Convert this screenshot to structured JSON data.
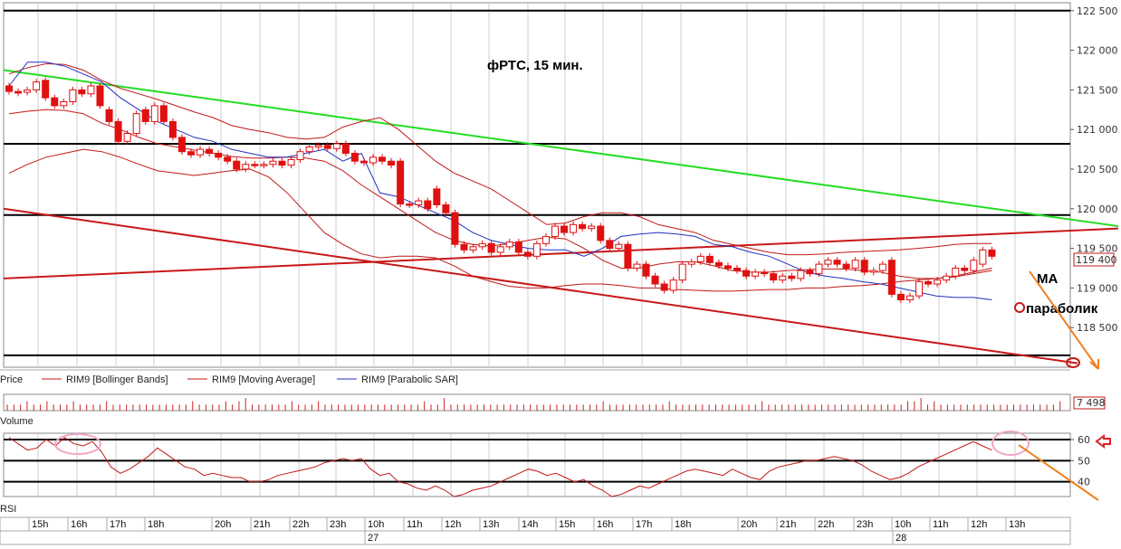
{
  "colors": {
    "candle": "#e01010",
    "bollinger": "#c01818",
    "moving_average": "#c01818",
    "parabolic_sar": "#2030c0",
    "trendline_green": "#22dd22",
    "trendline_red": "#c81818",
    "annotation_arrow": "#f08020",
    "rsi": "#c01818",
    "volume": "#cc2222",
    "ellipse": "#f0a8c8"
  },
  "chart_data": [
    {
      "type": "candlestick",
      "title": "фРТС,  15 мин.",
      "ylim": [
        118000,
        122600
      ],
      "y_ticks": [
        "122 500",
        "122 000",
        "121 500",
        "121 000",
        "120 500",
        "120 000",
        "119 500",
        "119 000",
        "118 500"
      ],
      "y_tick_values": [
        122500,
        122000,
        121500,
        121000,
        120500,
        120000,
        119500,
        119000,
        118500
      ],
      "last_price": "119 400",
      "legend": [
        {
          "swatch": "red",
          "label": "Price"
        },
        {
          "swatch": "red",
          "label": "RIM9 [Bollinger Bands]"
        },
        {
          "swatch": "red",
          "label": "RIM9 [Moving Average]"
        },
        {
          "swatch": "blue",
          "label": "RIM9 [Parabolic SAR]"
        }
      ],
      "horizontal_levels": [
        122500,
        120820,
        119920,
        118150
      ],
      "candles": [
        {
          "o": 121550,
          "c": 121480
        },
        {
          "o": 121480,
          "c": 121460
        },
        {
          "o": 121470,
          "c": 121500
        },
        {
          "o": 121500,
          "c": 121600
        },
        {
          "o": 121620,
          "c": 121400
        },
        {
          "o": 121400,
          "c": 121300
        },
        {
          "o": 121300,
          "c": 121350
        },
        {
          "o": 121350,
          "c": 121500
        },
        {
          "o": 121500,
          "c": 121450
        },
        {
          "o": 121450,
          "c": 121550
        },
        {
          "o": 121550,
          "c": 121300
        },
        {
          "o": 121250,
          "c": 121100
        },
        {
          "o": 121100,
          "c": 120850
        },
        {
          "o": 120850,
          "c": 120950
        },
        {
          "o": 120950,
          "c": 121200
        },
        {
          "o": 121250,
          "c": 121100
        },
        {
          "o": 121100,
          "c": 121300
        },
        {
          "o": 121300,
          "c": 121100
        },
        {
          "o": 121100,
          "c": 120900
        },
        {
          "o": 120900,
          "c": 120720
        },
        {
          "o": 120720,
          "c": 120680
        },
        {
          "o": 120680,
          "c": 120750
        },
        {
          "o": 120750,
          "c": 120700
        },
        {
          "o": 120700,
          "c": 120650
        },
        {
          "o": 120650,
          "c": 120600
        },
        {
          "o": 120600,
          "c": 120500
        },
        {
          "o": 120500,
          "c": 120560
        },
        {
          "o": 120560,
          "c": 120550
        },
        {
          "o": 120550,
          "c": 120560
        },
        {
          "o": 120560,
          "c": 120600
        },
        {
          "o": 120600,
          "c": 120550
        },
        {
          "o": 120550,
          "c": 120620
        },
        {
          "o": 120620,
          "c": 120720
        },
        {
          "o": 120720,
          "c": 120780
        },
        {
          "o": 120780,
          "c": 120800
        },
        {
          "o": 120800,
          "c": 120760
        },
        {
          "o": 120760,
          "c": 120820
        },
        {
          "o": 120820,
          "c": 120700
        },
        {
          "o": 120700,
          "c": 120600
        },
        {
          "o": 120600,
          "c": 120580
        },
        {
          "o": 120580,
          "c": 120650
        },
        {
          "o": 120650,
          "c": 120600
        },
        {
          "o": 120600,
          "c": 120550
        },
        {
          "o": 120600,
          "c": 120060
        },
        {
          "o": 120060,
          "c": 120050
        },
        {
          "o": 120050,
          "c": 120100
        },
        {
          "o": 120100,
          "c": 120000
        },
        {
          "o": 120250,
          "c": 120050
        },
        {
          "o": 120050,
          "c": 119950
        },
        {
          "o": 119950,
          "c": 119550
        },
        {
          "o": 119550,
          "c": 119480
        },
        {
          "o": 119480,
          "c": 119520
        },
        {
          "o": 119520,
          "c": 119560
        },
        {
          "o": 119560,
          "c": 119450
        },
        {
          "o": 119450,
          "c": 119520
        },
        {
          "o": 119520,
          "c": 119580
        },
        {
          "o": 119580,
          "c": 119450
        },
        {
          "o": 119450,
          "c": 119400
        },
        {
          "o": 119400,
          "c": 119560
        },
        {
          "o": 119560,
          "c": 119650
        },
        {
          "o": 119650,
          "c": 119780
        },
        {
          "o": 119780,
          "c": 119700
        },
        {
          "o": 119700,
          "c": 119800
        },
        {
          "o": 119800,
          "c": 119750
        },
        {
          "o": 119750,
          "c": 119780
        },
        {
          "o": 119780,
          "c": 119600
        },
        {
          "o": 119600,
          "c": 119500
        },
        {
          "o": 119500,
          "c": 119550
        },
        {
          "o": 119550,
          "c": 119250
        },
        {
          "o": 119250,
          "c": 119300
        },
        {
          "o": 119300,
          "c": 119150
        },
        {
          "o": 119150,
          "c": 119050
        },
        {
          "o": 119050,
          "c": 118970
        },
        {
          "o": 118970,
          "c": 119100
        },
        {
          "o": 119100,
          "c": 119300
        },
        {
          "o": 119300,
          "c": 119330
        },
        {
          "o": 119330,
          "c": 119400
        },
        {
          "o": 119400,
          "c": 119320
        },
        {
          "o": 119320,
          "c": 119280
        },
        {
          "o": 119280,
          "c": 119250
        },
        {
          "o": 119250,
          "c": 119220
        },
        {
          "o": 119220,
          "c": 119150
        },
        {
          "o": 119150,
          "c": 119200
        },
        {
          "o": 119200,
          "c": 119180
        },
        {
          "o": 119180,
          "c": 119100
        },
        {
          "o": 119100,
          "c": 119150
        },
        {
          "o": 119150,
          "c": 119120
        },
        {
          "o": 119120,
          "c": 119220
        },
        {
          "o": 119220,
          "c": 119180
        },
        {
          "o": 119180,
          "c": 119300
        },
        {
          "o": 119300,
          "c": 119350
        },
        {
          "o": 119350,
          "c": 119300
        },
        {
          "o": 119300,
          "c": 119250
        },
        {
          "o": 119250,
          "c": 119350
        },
        {
          "o": 119350,
          "c": 119200
        },
        {
          "o": 119200,
          "c": 119220
        },
        {
          "o": 119220,
          "c": 119300
        },
        {
          "o": 119350,
          "c": 118920
        },
        {
          "o": 118920,
          "c": 118850
        },
        {
          "o": 118850,
          "c": 118900
        },
        {
          "o": 118900,
          "c": 119080
        },
        {
          "o": 119080,
          "c": 119050
        },
        {
          "o": 119050,
          "c": 119100
        },
        {
          "o": 119100,
          "c": 119150
        },
        {
          "o": 119150,
          "c": 119250
        },
        {
          "o": 119250,
          "c": 119220
        },
        {
          "o": 119220,
          "c": 119350
        },
        {
          "o": 119300,
          "c": 119480
        },
        {
          "o": 119480,
          "c": 119400
        }
      ],
      "bollinger_upper": [
        121700,
        121780,
        121830,
        121820,
        121750,
        121620,
        121520,
        121450,
        121380,
        121300,
        121220,
        121150,
        121050,
        121000,
        120960,
        120900,
        120880,
        120900,
        121030,
        121100,
        121150,
        121000,
        120800,
        120600,
        120450,
        120350,
        120250,
        120100,
        119950,
        119800,
        119820,
        119900,
        119950,
        119950,
        119900,
        119800,
        119750,
        119700,
        119600,
        119550,
        119500,
        119450,
        119420,
        119420,
        119430,
        119450,
        119460,
        119470,
        119480,
        119500,
        119520,
        119550,
        119560,
        119560
      ],
      "bollinger_lower": [
        120450,
        120560,
        120650,
        120700,
        120750,
        120720,
        120650,
        120560,
        120480,
        120450,
        120420,
        120450,
        120480,
        120500,
        120400,
        120200,
        119950,
        119700,
        119550,
        119430,
        119380,
        119400,
        119400,
        119380,
        119280,
        119150,
        119080,
        119020,
        119000,
        119000,
        119030,
        119050,
        119050,
        119030,
        119000,
        119000,
        118980,
        118970,
        118960,
        118960,
        118970,
        118980,
        118980,
        119000,
        119000,
        119020,
        119030,
        119050,
        119080,
        119100,
        119120,
        119150,
        119200,
        119250
      ],
      "moving_average": [
        121200,
        121230,
        121250,
        121240,
        121200,
        121080,
        121000,
        120900,
        120820,
        120780,
        120740,
        120700,
        120660,
        120640,
        120640,
        120650,
        120640,
        120600,
        120480,
        120300,
        120150,
        120000,
        119850,
        119700,
        119600,
        119550,
        119530,
        119560,
        119600,
        119640,
        119620,
        119500,
        119350,
        119250,
        119250,
        119300,
        119330,
        119330,
        119280,
        119220,
        119200,
        119200,
        119220,
        119230,
        119240,
        119240,
        119220,
        119200,
        119150,
        119120,
        119120,
        119140,
        119180,
        119220
      ],
      "parabolic_sar": [
        121550,
        121850,
        121850,
        121800,
        121700,
        121600,
        121400,
        121250,
        121100,
        121000,
        120900,
        120850,
        120750,
        120700,
        120650,
        120650,
        120700,
        120750,
        120600,
        120700,
        120200,
        120150,
        120050,
        119950,
        119850,
        119700,
        119600,
        119550,
        119500,
        119480,
        119480,
        119400,
        119500,
        119650,
        119680,
        119700,
        119680,
        119650,
        119550,
        119520,
        119450,
        119400,
        119300,
        119200,
        119150,
        119120,
        119080,
        119050,
        119000,
        118950,
        118900,
        118880,
        118880,
        118850
      ]
    },
    {
      "type": "bar",
      "title": "Volume",
      "last_value": "7 498",
      "values": [
        1,
        1,
        1,
        2,
        1,
        1,
        2,
        1,
        1,
        1,
        2,
        1,
        1,
        1,
        1,
        2,
        1,
        1,
        1,
        1,
        1,
        1,
        1,
        1,
        1,
        1,
        1,
        1,
        2,
        1,
        1,
        1,
        1,
        2,
        1,
        2,
        3,
        1,
        1,
        1,
        1,
        1,
        1,
        2,
        1,
        1,
        1,
        2,
        1,
        1,
        1,
        1,
        1,
        1,
        1,
        1,
        1,
        1,
        1,
        1,
        1,
        1,
        1,
        2,
        1,
        1,
        3,
        1,
        1,
        1,
        1,
        1,
        1,
        1,
        1,
        1,
        1,
        1,
        1,
        1,
        1,
        1,
        1,
        1,
        1,
        1,
        1,
        1,
        1,
        1,
        2,
        1,
        1,
        1,
        1,
        1,
        1,
        1,
        1,
        1,
        2,
        1,
        1,
        1,
        1,
        1,
        1,
        1,
        1,
        1,
        1,
        1,
        1,
        1,
        2,
        1,
        1,
        1,
        1,
        1,
        1,
        1,
        1,
        1,
        1,
        1,
        1,
        1,
        1,
        1,
        1,
        1,
        1,
        1,
        1,
        1,
        2,
        2,
        3,
        1,
        2,
        1,
        1,
        1,
        1,
        1,
        1,
        1,
        1,
        1,
        1,
        1,
        1,
        1,
        1,
        1,
        1,
        1,
        1,
        2
      ]
    },
    {
      "type": "line",
      "title": "RSI",
      "y_ticks": [
        "60",
        "50",
        "40"
      ],
      "y_tick_values": [
        60,
        50,
        40
      ],
      "ylim": [
        33,
        63
      ],
      "horizontal_levels": [
        60,
        50,
        40
      ],
      "values": [
        61,
        58,
        55,
        56,
        60,
        57,
        61,
        58,
        57,
        59,
        54,
        47,
        44,
        46,
        49,
        52,
        56,
        53,
        50,
        47,
        46,
        43,
        44,
        43,
        42,
        42,
        40,
        40,
        41,
        43,
        44,
        45,
        46,
        47,
        49,
        50,
        51,
        50,
        51,
        46,
        43,
        44,
        40,
        39,
        37,
        36,
        38,
        36,
        32,
        34,
        36,
        37,
        38,
        40,
        42,
        44,
        46,
        45,
        43,
        44,
        42,
        40,
        41,
        38,
        36,
        33,
        34,
        36,
        38,
        37,
        39,
        41,
        43,
        45,
        46,
        45,
        44,
        43,
        46,
        44,
        42,
        41,
        45,
        47,
        48,
        49,
        50,
        50,
        51,
        52,
        51,
        50,
        48,
        45,
        43,
        41,
        42,
        44,
        47,
        49,
        51,
        53,
        55,
        57,
        59,
        57,
        55
      ]
    },
    {
      "type": "time-axis",
      "hour_labels": [
        "15h",
        "16h",
        "17h",
        "18h",
        "20h",
        "21h",
        "22h",
        "23h",
        "10h",
        "11h",
        "12h",
        "13h",
        "14h",
        "15h",
        "16h",
        "17h",
        "18h",
        "20h",
        "21h",
        "22h",
        "23h",
        "10h",
        "11h",
        "12h",
        "13h"
      ],
      "day_labels": [
        "27",
        "28"
      ]
    }
  ],
  "annotations": {
    "ma_label": "MA",
    "sar_label": "параболик"
  }
}
